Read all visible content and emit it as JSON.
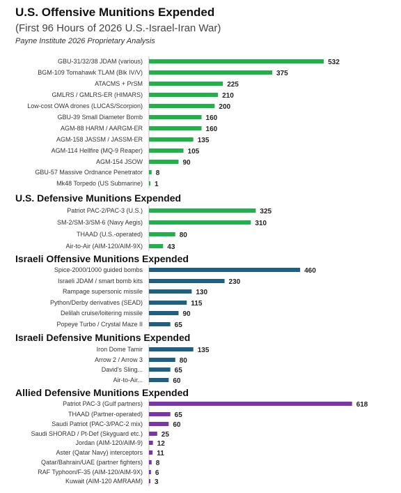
{
  "header": {
    "title": "U.S. Offensive Munitions Expended",
    "subtitle": "(First 96 Hours of 2026 U.S.-Israel-Iran War)",
    "source": "Payne Institute 2026 Proprietary Analysis"
  },
  "chart_data": {
    "type": "bar",
    "orientation": "horizontal",
    "xlim": [
      0,
      620
    ],
    "grid": false,
    "sections": [
      {
        "title": "",
        "color": "#22b04c",
        "categories": [
          "GBU-31/32/38 JDAM (various)",
          "BGM-109 Tomahawk TLAM (Blk IV/V)",
          "ATACMS + PrSM",
          "GMLRS / GMLRS-ER (HIMARS)",
          "Low-cost OWA drones (LUCAS/Scorpion)",
          "GBU-39 Small Diameter Bomb",
          "AGM-88 HARM / AARGM-ER",
          "AGM-158 JASSM / JASSM-ER",
          "AGM-114 Hellfire (MQ-9 Reaper)",
          "AGM-154 JSOW",
          "GBU-57 Massive Ordnance Penetrator",
          "Mk48 Torpedo (US Submarine)"
        ],
        "values": [
          532,
          375,
          225,
          210,
          200,
          160,
          160,
          135,
          105,
          90,
          8,
          1
        ]
      },
      {
        "title": "U.S. Defensive Munitions Expended",
        "color": "#22b04c",
        "categories": [
          "Patriot PAC-2/PAC-3 (U.S.)",
          "SM-2/SM-3/SM-6 (Navy Aegis)",
          "THAAD (U.S.-operated)",
          "Air-to-Air (AIM-120/AIM-9X)"
        ],
        "values": [
          325,
          310,
          80,
          43
        ]
      },
      {
        "title": "Israeli Offensive Munitions Expended",
        "color": "#1f5f82",
        "categories": [
          "Spice-2000/1000 guided bombs",
          "Israeli JDAM / smart bomb kits",
          "Rampage supersonic missile",
          "Python/Derby derivatives (SEAD)",
          "Delilah cruise/loitering missile",
          "Popeye Turbo / Crystal Maze II"
        ],
        "values": [
          460,
          230,
          130,
          115,
          90,
          65
        ]
      },
      {
        "title": "Israeli Defensive Munitions Expended",
        "color": "#1f5f82",
        "categories": [
          "Iron Dome Tamir",
          "Arrow 2 / Arrow 3",
          "David's Sling...",
          "Air-to-Air..."
        ],
        "values": [
          135,
          80,
          65,
          60
        ]
      },
      {
        "title": "Allied Defensive Munitions Expended",
        "color": "#7a35a8",
        "categories": [
          "Patriot PAC-3 (Gulf partners)",
          "THAAD (Partner-operated)",
          "Saudi Patriot (PAC-3/PAC-2 mix)",
          "Saudi SHORAD / Pt-Def (Skyguard etc.)",
          "Jordan (AIM-120/AIM-9)",
          "Aster (Qatar Navy) interceptors",
          "Qatar/Bahrain/UAE (partner fighters)",
          "RAF Typhoon/F-35 (AIM-120/AIM-9X)",
          "Kuwait (AIM-120 AMRAAM)"
        ],
        "values": [
          618,
          65,
          60,
          25,
          12,
          11,
          8,
          6,
          3
        ]
      }
    ]
  }
}
